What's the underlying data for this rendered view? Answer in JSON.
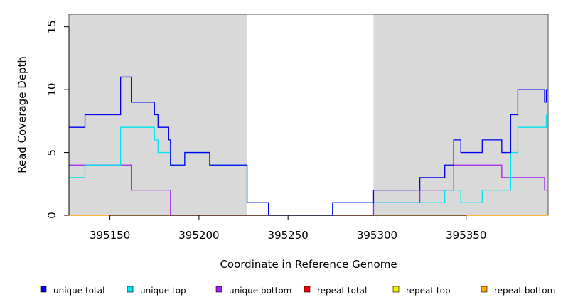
{
  "chart_data": {
    "type": "line",
    "xlabel": "Coordinate in Reference Genome",
    "ylabel": "Read Coverage Depth",
    "xlim": [
      395127,
      395396
    ],
    "ylim": [
      0,
      16
    ],
    "x_ticks": [
      395150,
      395200,
      395250,
      395300,
      395350
    ],
    "y_ticks": [
      0,
      5,
      10,
      15
    ],
    "shaded_regions": [
      [
        395127,
        395227
      ],
      [
        395298,
        395396
      ]
    ],
    "shade_color": "#d9d9d9",
    "legend_position": "bottom",
    "series": [
      {
        "name": "unique total",
        "color": "#0000ee",
        "points": [
          [
            395127,
            7
          ],
          [
            395136,
            7
          ],
          [
            395136,
            8
          ],
          [
            395156,
            8
          ],
          [
            395156,
            11
          ],
          [
            395162,
            11
          ],
          [
            395162,
            9
          ],
          [
            395175,
            9
          ],
          [
            395175,
            8
          ],
          [
            395177,
            8
          ],
          [
            395177,
            7
          ],
          [
            395183,
            7
          ],
          [
            395183,
            6
          ],
          [
            395184,
            6
          ],
          [
            395184,
            4
          ],
          [
            395192,
            4
          ],
          [
            395192,
            5
          ],
          [
            395206,
            5
          ],
          [
            395206,
            4
          ],
          [
            395227,
            4
          ],
          [
            395227,
            1
          ],
          [
            395239,
            1
          ],
          [
            395239,
            0
          ],
          [
            395275,
            0
          ],
          [
            395275,
            1
          ],
          [
            395298,
            1
          ],
          [
            395298,
            2
          ],
          [
            395324,
            2
          ],
          [
            395324,
            3
          ],
          [
            395338,
            3
          ],
          [
            395338,
            4
          ],
          [
            395343,
            4
          ],
          [
            395343,
            6
          ],
          [
            395347,
            6
          ],
          [
            395347,
            5
          ],
          [
            395359,
            5
          ],
          [
            395359,
            6
          ],
          [
            395370,
            6
          ],
          [
            395370,
            5
          ],
          [
            395375,
            5
          ],
          [
            395375,
            8
          ],
          [
            395379,
            8
          ],
          [
            395379,
            10
          ],
          [
            395394,
            10
          ],
          [
            395394,
            9
          ],
          [
            395395,
            9
          ],
          [
            395395,
            10
          ],
          [
            395396,
            10
          ]
        ]
      },
      {
        "name": "unique top",
        "color": "#00e5ee",
        "points": [
          [
            395127,
            3
          ],
          [
            395136,
            3
          ],
          [
            395136,
            4
          ],
          [
            395156,
            4
          ],
          [
            395156,
            7
          ],
          [
            395175,
            7
          ],
          [
            395175,
            6
          ],
          [
            395177,
            6
          ],
          [
            395177,
            5
          ],
          [
            395184,
            5
          ],
          [
            395184,
            4
          ],
          [
            395192,
            4
          ],
          [
            395192,
            5
          ],
          [
            395206,
            5
          ],
          [
            395206,
            4
          ],
          [
            395227,
            4
          ],
          [
            395227,
            1
          ],
          [
            395239,
            1
          ],
          [
            395239,
            0
          ],
          [
            395275,
            0
          ],
          [
            395275,
            1
          ],
          [
            395324,
            1
          ],
          [
            395324,
            1
          ],
          [
            395338,
            1
          ],
          [
            395338,
            2
          ],
          [
            395347,
            2
          ],
          [
            395347,
            1
          ],
          [
            395359,
            1
          ],
          [
            395359,
            2
          ],
          [
            395375,
            2
          ],
          [
            395375,
            5
          ],
          [
            395379,
            5
          ],
          [
            395379,
            7
          ],
          [
            395395,
            7
          ],
          [
            395395,
            8
          ],
          [
            395396,
            8
          ]
        ]
      },
      {
        "name": "unique bottom",
        "color": "#a020f0",
        "points": [
          [
            395127,
            4
          ],
          [
            395162,
            4
          ],
          [
            395162,
            2
          ],
          [
            395184,
            2
          ],
          [
            395184,
            0
          ],
          [
            395298,
            0
          ],
          [
            395298,
            1
          ],
          [
            395324,
            1
          ],
          [
            395324,
            2
          ],
          [
            395343,
            2
          ],
          [
            395343,
            4
          ],
          [
            395370,
            4
          ],
          [
            395370,
            3
          ],
          [
            395394,
            3
          ],
          [
            395394,
            2
          ],
          [
            395396,
            2
          ]
        ]
      },
      {
        "name": "repeat total",
        "color": "#ee0000",
        "points": [
          [
            395127,
            0
          ],
          [
            395396,
            0
          ]
        ]
      },
      {
        "name": "repeat top",
        "color": "#eeee00",
        "points": [
          [
            395127,
            0
          ],
          [
            395396,
            0
          ]
        ]
      },
      {
        "name": "repeat bottom",
        "color": "#ffa500",
        "points": [
          [
            395127,
            0
          ],
          [
            395396,
            0
          ]
        ]
      }
    ]
  }
}
